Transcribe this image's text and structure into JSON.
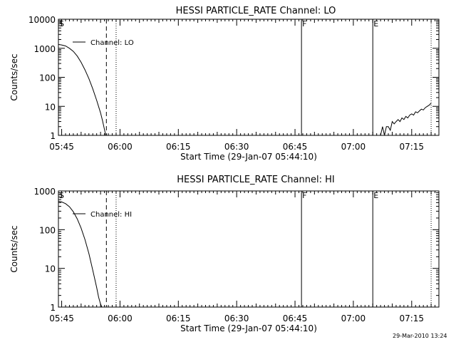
{
  "footer": {
    "timestamp": "29-Mar-2010 13:24"
  },
  "chart_data": [
    {
      "type": "line",
      "title": "HESSI PARTICLE_RATE Channel: LO",
      "xlabel": "Start Time (29-Jan-07 05:44:10)",
      "ylabel": "Counts/sec",
      "y_scale": "log",
      "xlim": [
        "05:44:10",
        "07:22:00"
      ],
      "ylim": [
        1,
        10000
      ],
      "x_tick_labels": [
        "05:45",
        "06:00",
        "06:15",
        "06:30",
        "06:45",
        "07:00",
        "07:15"
      ],
      "y_tick_labels": [
        "1",
        "10",
        "100",
        "1000",
        "10000"
      ],
      "legend": {
        "label": "Channel: LO",
        "placement": "top-left"
      },
      "markers": [
        {
          "label": "S",
          "time": "05:44:10",
          "style": "solid"
        },
        {
          "label": "",
          "time": "05:56:30",
          "style": "dashed"
        },
        {
          "label": "",
          "time": "05:59:00",
          "style": "dotted"
        },
        {
          "label": "F",
          "time": "06:46:40",
          "style": "solid"
        },
        {
          "label": "E",
          "time": "07:05:00",
          "style": "solid"
        },
        {
          "label": "",
          "time": "07:20:00",
          "style": "dotted"
        }
      ],
      "series": [
        {
          "name": "Channel: LO",
          "segments": [
            {
              "x": [
                "05:44:10",
                "05:45:00",
                "05:46:00",
                "05:47:00",
                "05:48:00",
                "05:49:00",
                "05:50:00",
                "05:51:00",
                "05:52:00",
                "05:53:00",
                "05:54:00",
                "05:55:00",
                "05:55:30",
                "05:56:00",
                "05:56:20"
              ],
              "y": [
                1350,
                1300,
                1200,
                1000,
                780,
                540,
                330,
                180,
                90,
                40,
                16,
                6,
                3.2,
                1.6,
                1
              ]
            },
            {
              "x": [
                "07:07:00",
                "07:07:30",
                "07:08:00",
                "07:08:30",
                "07:09:00",
                "07:09:30",
                "07:10:00",
                "07:10:30",
                "07:11:00",
                "07:11:30",
                "07:12:00",
                "07:12:30",
                "07:13:00",
                "07:13:30",
                "07:14:00",
                "07:14:30",
                "07:15:00",
                "07:15:30",
                "07:16:00",
                "07:16:30",
                "07:17:00",
                "07:17:30",
                "07:18:00",
                "07:18:30",
                "07:19:00",
                "07:19:30",
                "07:20:00"
              ],
              "y": [
                1,
                2,
                1,
                2,
                2,
                1.5,
                3,
                2.5,
                3,
                3.5,
                3,
                4,
                3.5,
                4.5,
                4,
                5,
                5.5,
                5,
                6.5,
                6,
                7,
                8,
                7.5,
                9,
                10,
                11,
                13
              ]
            }
          ]
        }
      ]
    },
    {
      "type": "line",
      "title": "HESSI PARTICLE_RATE Channel: HI",
      "xlabel": "Start Time (29-Jan-07 05:44:10)",
      "ylabel": "Counts/sec",
      "y_scale": "log",
      "xlim": [
        "05:44:10",
        "07:22:00"
      ],
      "ylim": [
        1,
        1000
      ],
      "x_tick_labels": [
        "05:45",
        "06:00",
        "06:15",
        "06:30",
        "06:45",
        "07:00",
        "07:15"
      ],
      "y_tick_labels": [
        "1",
        "10",
        "100",
        "1000"
      ],
      "legend": {
        "label": "Channel: HI",
        "placement": "top-left"
      },
      "markers": [
        {
          "label": "S",
          "time": "05:44:10",
          "style": "solid"
        },
        {
          "label": "",
          "time": "05:56:30",
          "style": "dashed"
        },
        {
          "label": "",
          "time": "05:59:00",
          "style": "dotted"
        },
        {
          "label": "F",
          "time": "06:46:40",
          "style": "solid"
        },
        {
          "label": "E",
          "time": "07:05:00",
          "style": "solid"
        },
        {
          "label": "",
          "time": "07:20:00",
          "style": "dotted"
        }
      ],
      "series": [
        {
          "name": "Channel: HI",
          "segments": [
            {
              "x": [
                "05:44:10",
                "05:45:00",
                "05:46:00",
                "05:47:00",
                "05:48:00",
                "05:49:00",
                "05:50:00",
                "05:51:00",
                "05:52:00",
                "05:53:00",
                "05:54:00",
                "05:54:30",
                "05:55:00",
                "05:55:20"
              ],
              "y": [
                540,
                520,
                470,
                390,
                290,
                190,
                110,
                55,
                24,
                9,
                3.2,
                1.8,
                1.2,
                1
              ]
            }
          ]
        }
      ]
    }
  ]
}
